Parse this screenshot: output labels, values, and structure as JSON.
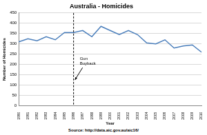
{
  "chart_data": {
    "type": "line",
    "title": "Australia - Homicides",
    "x_label": "Year",
    "y_label": "Number of Homicides",
    "categories": [
      "1990",
      "1991",
      "1992",
      "1993",
      "1994",
      "1995",
      "1996",
      "1997",
      "1998",
      "1999",
      "2000",
      "2001",
      "2002",
      "2003",
      "2004",
      "2005",
      "2006",
      "2007",
      "2008",
      "2009",
      "2010"
    ],
    "values": [
      310,
      325,
      315,
      335,
      320,
      355,
      355,
      365,
      335,
      385,
      365,
      345,
      365,
      345,
      305,
      300,
      320,
      280,
      290,
      295,
      260
    ],
    "color": "#4a7ebb",
    "ylim": [
      0,
      450
    ],
    "yticks": [
      0,
      50,
      100,
      150,
      200,
      250,
      300,
      350,
      400,
      450
    ],
    "grid": true,
    "annotations": [
      {
        "text": "Gun Buyback",
        "x": "1996",
        "line_style": "dashed"
      }
    ],
    "source": "Source: http://data.aic.gov.au/aic16/"
  }
}
